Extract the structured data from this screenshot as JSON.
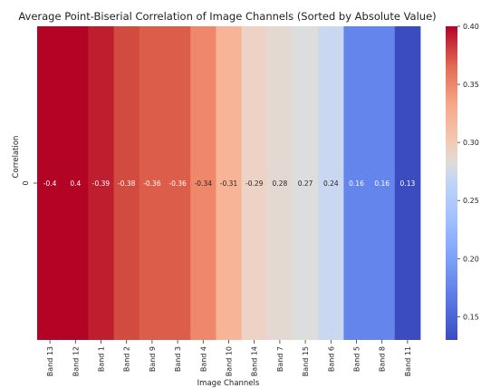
{
  "chart_data": {
    "type": "heatmap",
    "title": "Average Point-Biserial Correlation of Image Channels (Sorted by Absolute Value)",
    "xlabel": "Image Channels",
    "ylabel": "Correlation",
    "row_labels": [
      "0"
    ],
    "categories": [
      "Band 13",
      "Band 12",
      "Band 1",
      "Band 2",
      "Band 9",
      "Band 3",
      "Band 4",
      "Band 10",
      "Band 14",
      "Band 7",
      "Band 15",
      "Band 6",
      "Band 5",
      "Band 8",
      "Band 11"
    ],
    "values": [
      -0.4,
      0.4,
      -0.39,
      -0.38,
      -0.36,
      -0.36,
      -0.34,
      -0.31,
      -0.29,
      0.28,
      0.27,
      0.24,
      0.16,
      0.16,
      0.13
    ],
    "value_labels": [
      "-0.4",
      "0.4",
      "-0.39",
      "-0.38",
      "-0.36",
      "-0.36",
      "-0.34",
      "-0.31",
      "-0.29",
      "0.28",
      "0.27",
      "0.24",
      "0.16",
      "0.16",
      "0.13"
    ],
    "cell_colors": [
      "#b40426",
      "#b40426",
      "#be1e2d",
      "#d24b40",
      "#dc5d4a",
      "#dc5d4a",
      "#ef886b",
      "#f7b497",
      "#ecd3c5",
      "#e4d9d2",
      "#dcdddd",
      "#c9d7f0",
      "#6485ec",
      "#6485ec",
      "#3b4cc0"
    ],
    "colorscale": "coolwarm",
    "colorbar": {
      "min": 0.13,
      "max": 0.4,
      "ticks": [
        0.15,
        0.2,
        0.25,
        0.3,
        0.35,
        0.4
      ],
      "tick_labels": [
        "0.15",
        "0.20",
        "0.25",
        "0.30",
        "0.35",
        "0.40"
      ]
    },
    "grid": false
  }
}
